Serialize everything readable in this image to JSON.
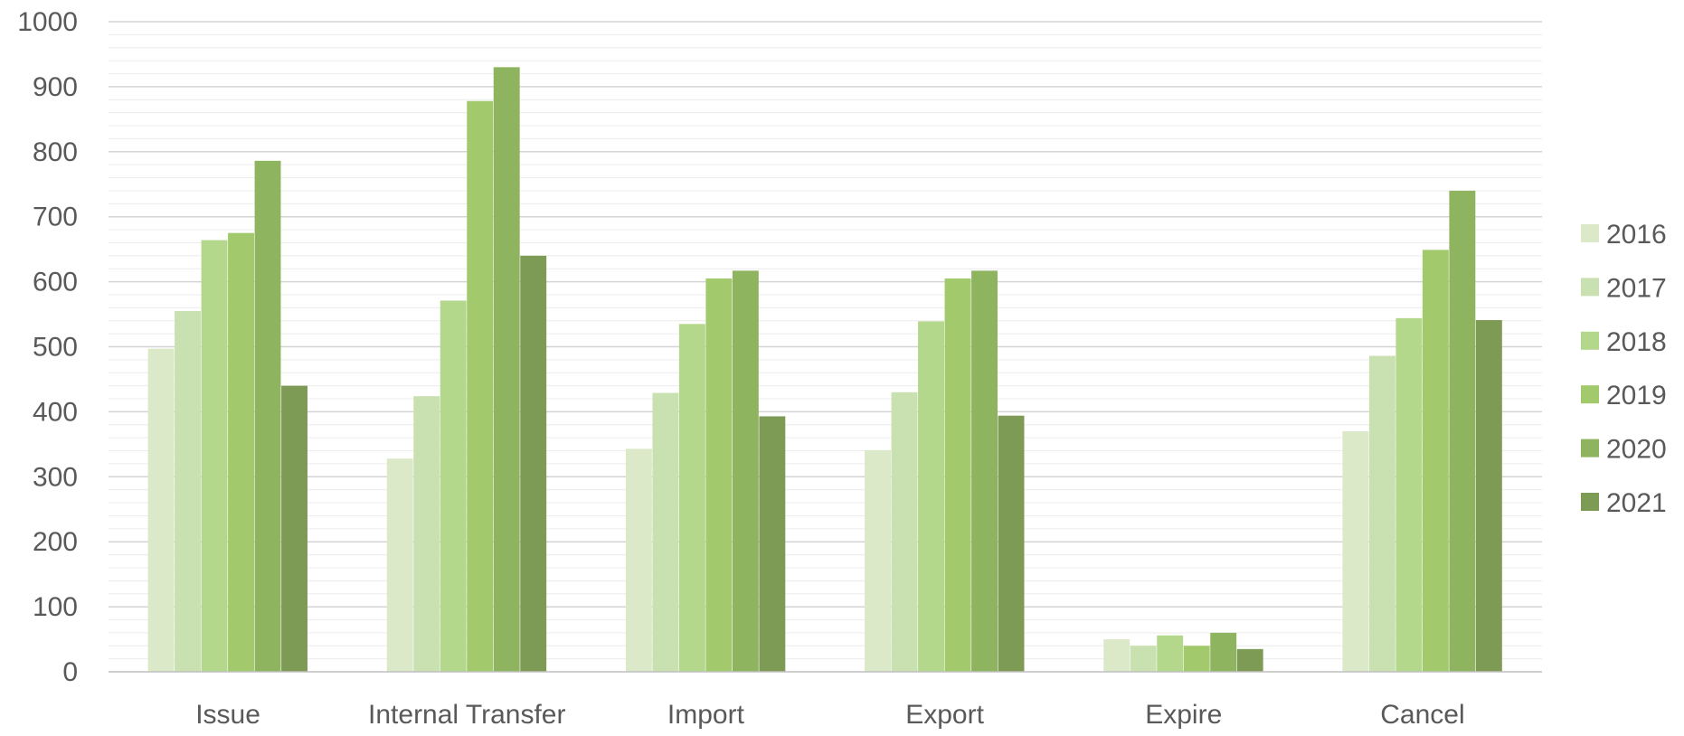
{
  "chart_data": {
    "type": "bar",
    "categories": [
      "Issue",
      "Internal Transfer",
      "Import",
      "Export",
      "Expire",
      "Cancel"
    ],
    "series": [
      {
        "name": "2016",
        "color": "#dbe9c8",
        "values": [
          497,
          328,
          343,
          341,
          50,
          370
        ]
      },
      {
        "name": "2017",
        "color": "#c9e1b0",
        "values": [
          555,
          424,
          429,
          430,
          40,
          486
        ]
      },
      {
        "name": "2018",
        "color": "#b3d78b",
        "values": [
          664,
          571,
          535,
          539,
          56,
          544
        ]
      },
      {
        "name": "2019",
        "color": "#a2c96b",
        "values": [
          675,
          878,
          605,
          605,
          40,
          649
        ]
      },
      {
        "name": "2020",
        "color": "#8eb45f",
        "values": [
          786,
          930,
          617,
          617,
          60,
          740
        ]
      },
      {
        "name": "2021",
        "color": "#7e9b55",
        "values": [
          440,
          640,
          393,
          394,
          35,
          541
        ]
      }
    ],
    "ylim": [
      0,
      1000
    ],
    "yticks": [
      "0",
      "100",
      "200",
      "300",
      "400",
      "500",
      "600",
      "700",
      "800",
      "900",
      "1000"
    ],
    "grid": true,
    "legend_position": "right",
    "title": "",
    "xlabel": "",
    "ylabel": ""
  }
}
